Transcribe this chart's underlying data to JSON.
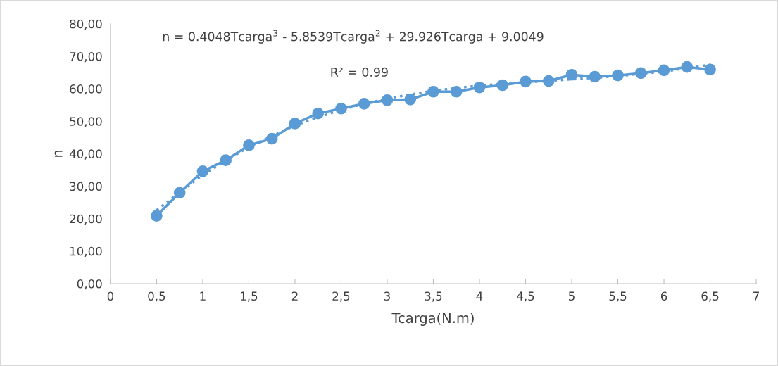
{
  "chart_data": {
    "type": "line",
    "xlabel": "Tcarga(N.m)",
    "ylabel": "n",
    "annotations": [
      "n = 0.4048Tcarga$^{3}$ - 5.8539Tcarga$^{2}$ + 29.926Tcarga + 9.0049",
      "R² = 0.99"
    ],
    "xlim": [
      0,
      7
    ],
    "ylim": [
      0,
      80
    ],
    "xticks": [
      0,
      {
        "value": 0.5,
        "label": "0,5"
      },
      1,
      {
        "value": 1.5,
        "label": "1,5"
      },
      2,
      {
        "value": 2.5,
        "label": "2,5"
      },
      3,
      {
        "value": 3.5,
        "label": "3,5"
      },
      4,
      {
        "value": 4.5,
        "label": "4,5"
      },
      5,
      {
        "value": 5.5,
        "label": "5,5"
      },
      6,
      {
        "value": 6.5,
        "label": "6,5"
      },
      7
    ],
    "yticks": [
      {
        "value": 0,
        "label": "0,00"
      },
      {
        "value": 10,
        "label": "10,00"
      },
      {
        "value": 20,
        "label": "20,00"
      },
      {
        "value": 30,
        "label": "30,00"
      },
      {
        "value": 40,
        "label": "40,00"
      },
      {
        "value": 50,
        "label": "50,00"
      },
      {
        "value": 60,
        "label": "60,00"
      },
      {
        "value": 70,
        "label": "70,00"
      },
      {
        "value": 80,
        "label": "80,00"
      }
    ],
    "grid": false,
    "series": [
      {
        "marker": "circle",
        "line_style": "solid",
        "color": "#5b9bd5",
        "x": [
          0.5,
          0.75,
          1,
          1.25,
          1.5,
          1.75,
          2,
          2.25,
          2.5,
          2.75,
          3,
          3.25,
          3.5,
          3.75,
          4,
          4.25,
          4.5,
          4.75,
          5,
          5.25,
          5.5,
          5.75,
          6,
          6.25,
          6.5
        ],
        "values": [
          20.9,
          28.0,
          34.6,
          38.0,
          42.6,
          44.6,
          49.3,
          52.4,
          53.9,
          55.4,
          56.5,
          56.7,
          59.1,
          59.1,
          60.4,
          61.1,
          62.2,
          62.4,
          64.3,
          63.7,
          64.1,
          64.8,
          65.7,
          66.7,
          65.9
        ]
      },
      {
        "marker": "none",
        "line_style": "dotted",
        "color": "#5b9bd5",
        "x": [
          0.5,
          1,
          1.5,
          2,
          2.5,
          3,
          3.5,
          4,
          4.5,
          5,
          5.5,
          6,
          6.5
        ],
        "values": [
          22.6,
          33.5,
          42.1,
          48.7,
          53.6,
          57.0,
          59.4,
          61.0,
          62.0,
          62.9,
          63.9,
          65.3,
          67.4
        ]
      }
    ]
  }
}
